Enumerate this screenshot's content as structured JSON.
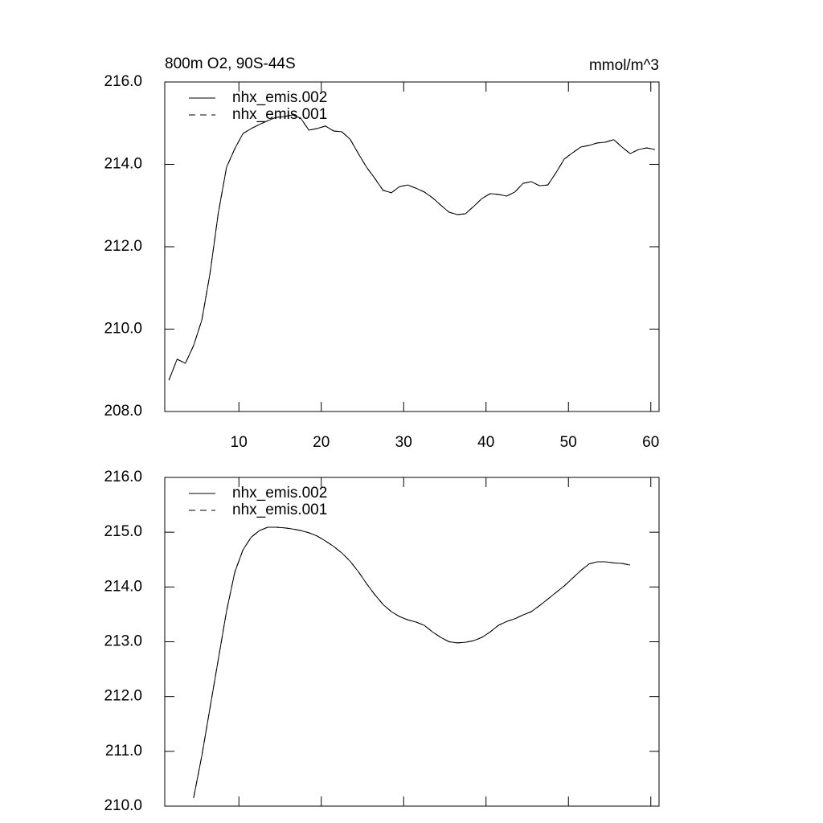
{
  "chart_data": [
    {
      "type": "line",
      "title": "800m O2, 90S-44S",
      "units": "mmol/m^3",
      "x": [
        1.5,
        2.5,
        3.5,
        4.5,
        5.5,
        6.5,
        7.5,
        8.5,
        9.5,
        10.5,
        11.5,
        12.5,
        13.5,
        14.5,
        15.5,
        16.5,
        17.5,
        18.5,
        19.5,
        20.5,
        21.5,
        22.5,
        23.5,
        24.5,
        25.5,
        26.5,
        27.5,
        28.5,
        29.5,
        30.5,
        31.5,
        32.5,
        33.5,
        34.5,
        35.5,
        36.5,
        37.5,
        38.5,
        39.5,
        40.5,
        41.5,
        42.5,
        43.5,
        44.5,
        45.5,
        46.5,
        47.5,
        48.5,
        49.5,
        50.5,
        51.5,
        52.5,
        53.5,
        54.5,
        55.5,
        56.5,
        57.5,
        58.5,
        59.5,
        60.5
      ],
      "series": [
        {
          "name": "nhx_emis.002",
          "color": "#000000",
          "dash": "none",
          "values": [
            208.76,
            209.27,
            209.17,
            209.6,
            210.22,
            211.36,
            212.82,
            213.93,
            214.38,
            214.75,
            214.87,
            214.97,
            215.06,
            215.14,
            215.16,
            215.2,
            215.12,
            214.83,
            214.87,
            214.93,
            214.81,
            214.79,
            214.61,
            214.26,
            213.93,
            213.66,
            213.37,
            213.31,
            213.46,
            213.5,
            213.42,
            213.33,
            213.19,
            213.01,
            212.84,
            212.78,
            212.8,
            212.98,
            213.17,
            213.29,
            213.27,
            213.23,
            213.33,
            213.54,
            213.58,
            213.48,
            213.5,
            213.8,
            214.13,
            214.28,
            214.42,
            214.46,
            214.52,
            214.54,
            214.6,
            214.42,
            214.26,
            214.36,
            214.4,
            214.36
          ]
        },
        {
          "name": "nhx_emis.001",
          "color": "#000000",
          "dash": "8 6",
          "values": [
            208.76,
            209.27,
            209.17,
            209.6,
            210.22,
            211.36,
            212.82,
            213.93,
            214.38,
            214.75,
            214.87,
            214.97,
            215.06,
            215.14,
            215.16,
            215.2,
            215.12,
            214.83,
            214.87,
            214.93,
            214.81,
            214.79,
            214.61,
            214.26,
            213.93,
            213.66,
            213.37,
            213.31,
            213.46,
            213.5,
            213.42,
            213.33,
            213.19,
            213.01,
            212.84,
            212.78,
            212.8,
            212.98,
            213.17,
            213.29,
            213.27,
            213.23,
            213.33,
            213.54,
            213.58,
            213.48,
            213.5,
            213.8,
            214.13,
            214.28,
            214.42,
            214.46,
            214.52,
            214.54,
            214.6,
            214.42,
            214.26,
            214.36,
            214.4,
            214.36
          ]
        }
      ],
      "xlim": [
        1,
        61
      ],
      "xticks": [
        10,
        20,
        30,
        40,
        50,
        60
      ],
      "xticklabels": true,
      "ylim": [
        208,
        216
      ],
      "yticks": [
        {
          "value": 208,
          "label": "208.0"
        },
        {
          "value": 210,
          "label": "210.0"
        },
        {
          "value": 212,
          "label": "212.0"
        },
        {
          "value": 214,
          "label": "214.0"
        },
        {
          "value": 216,
          "label": "216.0"
        }
      ],
      "legend": "top-left"
    },
    {
      "type": "line",
      "x": [
        4.5,
        5.5,
        6.5,
        7.5,
        8.5,
        9.5,
        10.5,
        11.5,
        12.5,
        13.5,
        14.5,
        15.5,
        16.5,
        17.5,
        18.5,
        19.5,
        20.5,
        21.5,
        22.5,
        23.5,
        24.5,
        25.5,
        26.5,
        27.5,
        28.5,
        29.5,
        30.5,
        31.5,
        32.5,
        33.5,
        34.5,
        35.5,
        36.5,
        37.5,
        38.5,
        39.5,
        40.5,
        41.5,
        42.5,
        43.5,
        44.5,
        45.5,
        46.5,
        47.5,
        48.5,
        49.5,
        50.5,
        51.5,
        52.5,
        53.5,
        54.5,
        55.5,
        56.5,
        57.5
      ],
      "series": [
        {
          "name": "nhx_emis.002",
          "color": "#000000",
          "dash": "none",
          "values": [
            210.15,
            210.92,
            211.8,
            212.68,
            213.56,
            214.27,
            214.68,
            214.91,
            215.03,
            215.09,
            215.09,
            215.08,
            215.06,
            215.03,
            214.99,
            214.93,
            214.84,
            214.74,
            214.62,
            214.47,
            214.28,
            214.06,
            213.86,
            213.68,
            213.55,
            213.46,
            213.4,
            213.36,
            213.3,
            213.18,
            213.08,
            213.0,
            212.98,
            212.99,
            213.02,
            213.08,
            213.18,
            213.3,
            213.37,
            213.42,
            213.49,
            213.55,
            213.66,
            213.78,
            213.9,
            214.02,
            214.16,
            214.3,
            214.42,
            214.46,
            214.46,
            214.44,
            214.43,
            214.4
          ]
        },
        {
          "name": "nhx_emis.001",
          "color": "#000000",
          "dash": "8 6",
          "values": [
            210.15,
            210.92,
            211.8,
            212.68,
            213.56,
            214.27,
            214.68,
            214.91,
            215.03,
            215.09,
            215.09,
            215.08,
            215.06,
            215.03,
            214.99,
            214.93,
            214.84,
            214.74,
            214.62,
            214.47,
            214.28,
            214.06,
            213.86,
            213.68,
            213.55,
            213.46,
            213.4,
            213.36,
            213.3,
            213.18,
            213.08,
            213.0,
            212.98,
            212.99,
            213.02,
            213.08,
            213.18,
            213.3,
            213.37,
            213.42,
            213.49,
            213.55,
            213.66,
            213.78,
            213.9,
            214.02,
            214.16,
            214.3,
            214.42,
            214.46,
            214.46,
            214.44,
            214.43,
            214.4
          ]
        }
      ],
      "xlim": [
        1,
        61
      ],
      "xticks": [
        10,
        20,
        30,
        40,
        50,
        60
      ],
      "xticklabels": false,
      "ylim": [
        210,
        216
      ],
      "yticks": [
        {
          "value": 210,
          "label": "210.0"
        },
        {
          "value": 211,
          "label": "211.0"
        },
        {
          "value": 212,
          "label": "212.0"
        },
        {
          "value": 213,
          "label": "213.0"
        },
        {
          "value": 214,
          "label": "214.0"
        },
        {
          "value": 215,
          "label": "215.0"
        },
        {
          "value": 216,
          "label": "216.0"
        }
      ],
      "legend": "top-left"
    }
  ]
}
